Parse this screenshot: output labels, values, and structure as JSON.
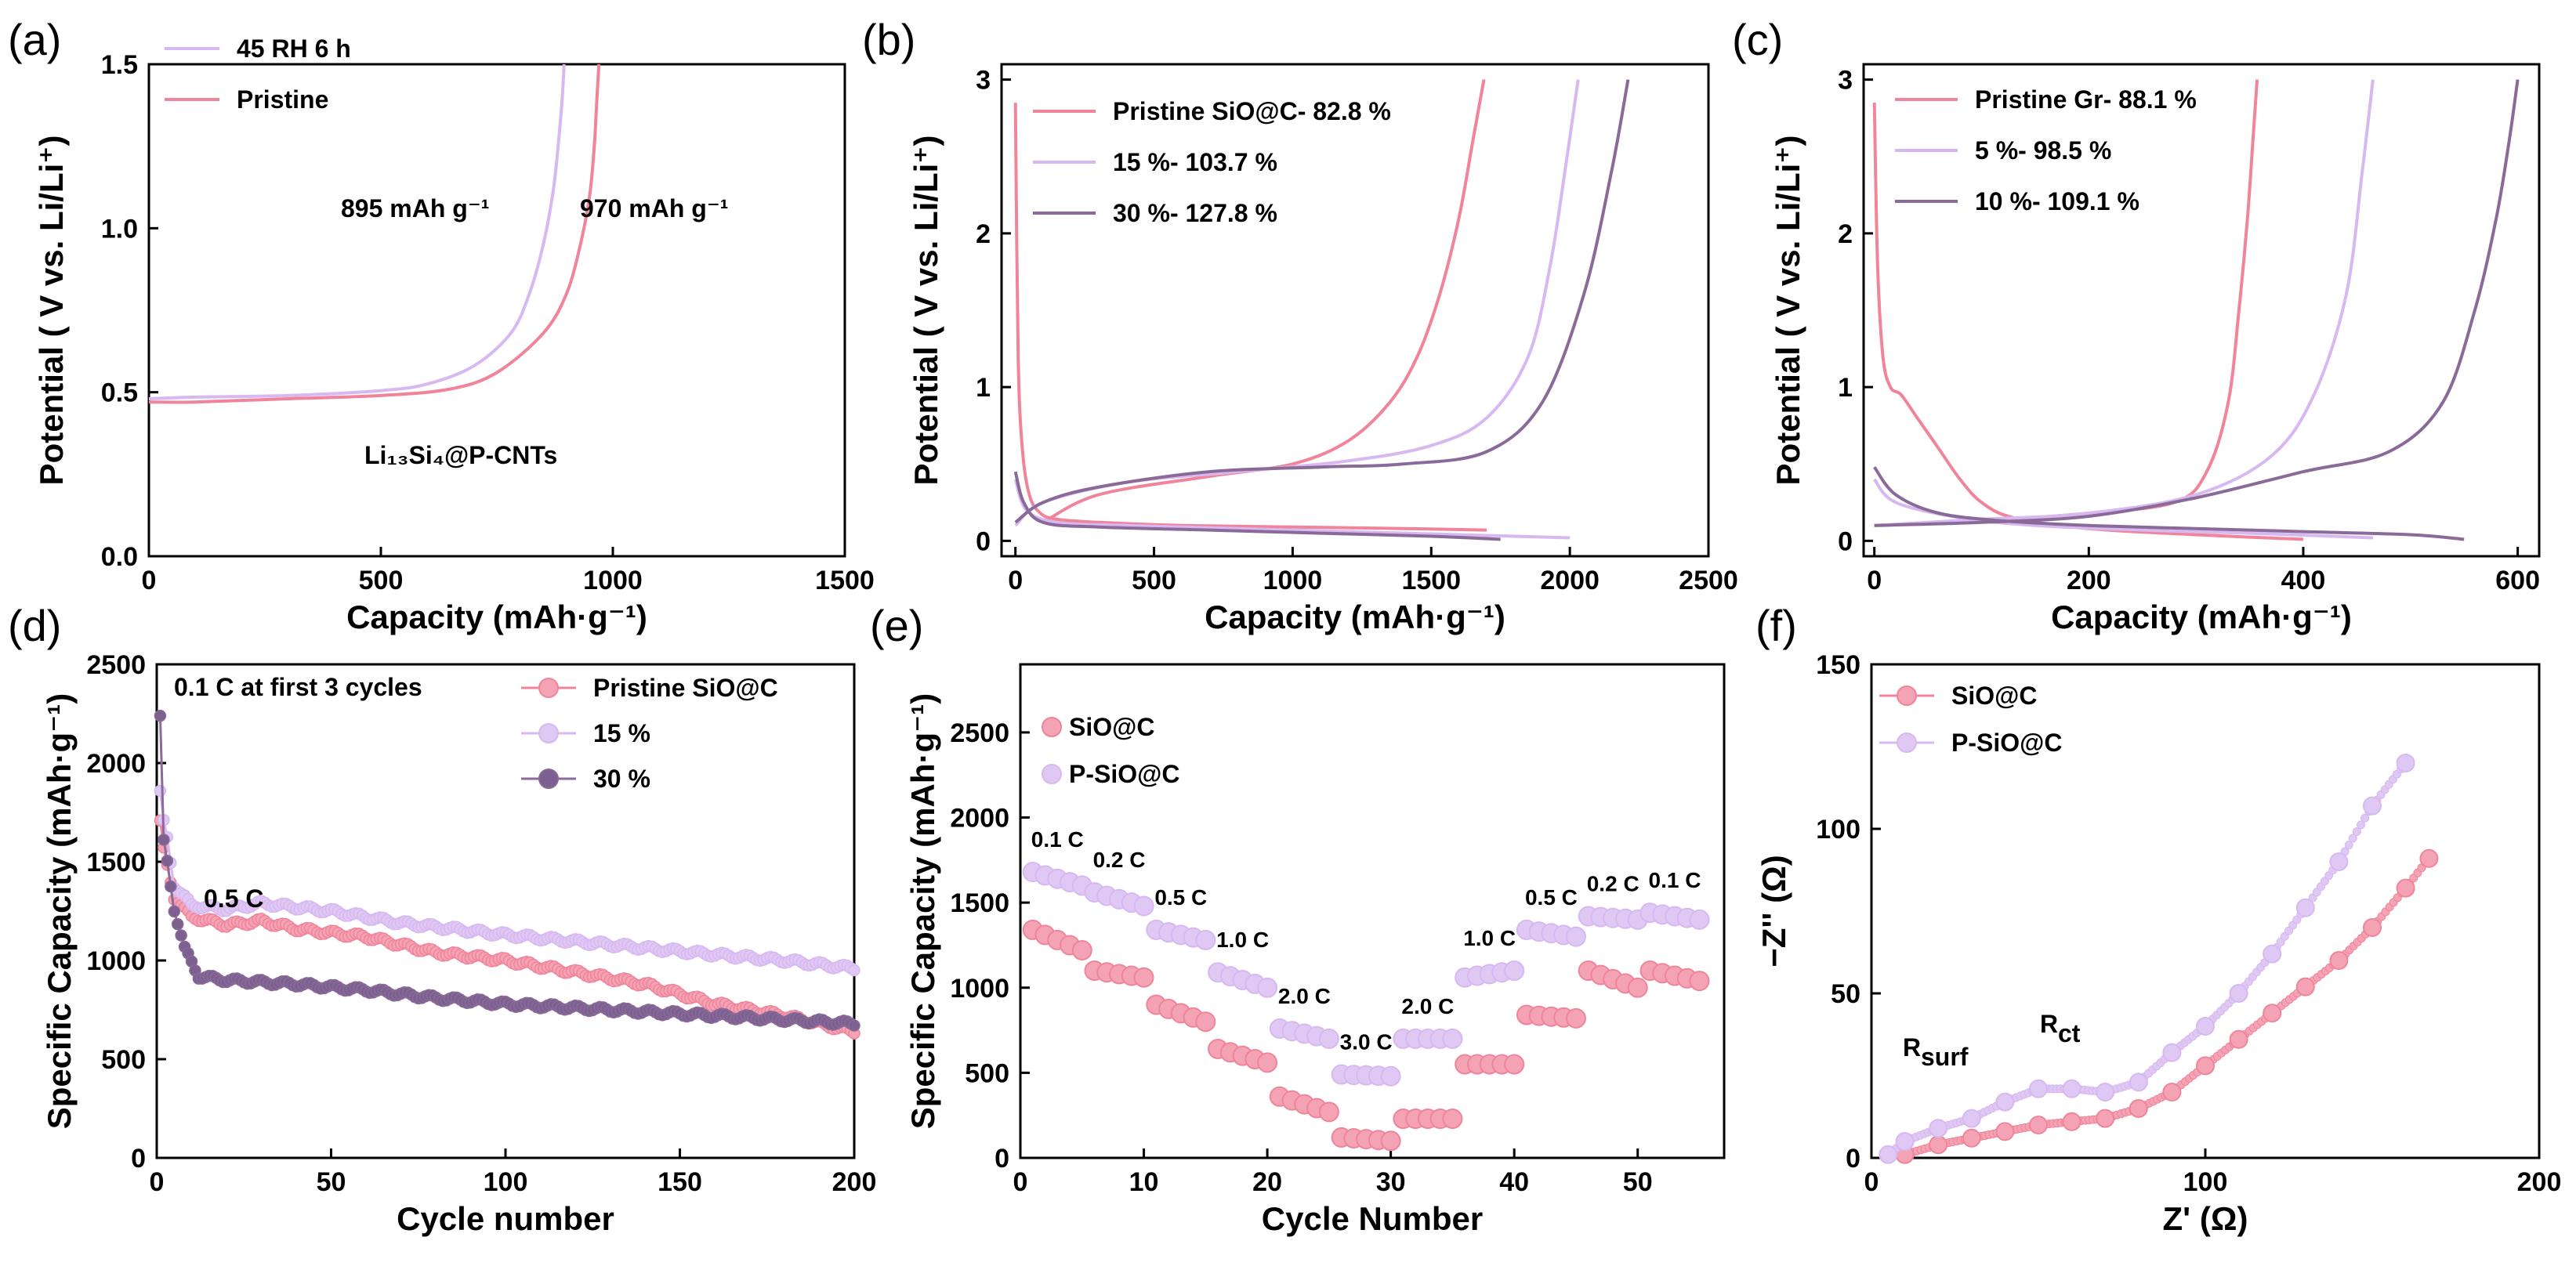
{
  "colors": {
    "pink": "#f0849a",
    "lavender": "#d7b8f0",
    "purple": "#8a6a98",
    "pinkFill": "#f4a3b4",
    "lavFill": "#e0c8f4",
    "purpleFill": "#7c6090"
  },
  "panel_labels": [
    "(a)",
    "(b)",
    "(c)",
    "(d)",
    "(e)",
    "(f)"
  ],
  "chart_data": [
    {
      "id": "a",
      "type": "line",
      "xlabel": "Capacity (mAh·g⁻¹)",
      "ylabel": "Potential ( V vs. Li/Li⁺)",
      "xlim": [
        0,
        1500
      ],
      "ylim": [
        0,
        1.5
      ],
      "xticks": [
        0,
        500,
        1000,
        1500
      ],
      "yticks": [
        0.0,
        0.5,
        1.0,
        1.5
      ],
      "legend": [
        "45 RH 6 h",
        "Pristine"
      ],
      "annotations": [
        "895 mAh g⁻¹",
        "970 mAh g⁻¹",
        "Li₁₃Si₄@P-CNTs"
      ],
      "series": [
        {
          "name": "45 RH 6 h",
          "color": "lavender",
          "x": [
            0,
            100,
            300,
            500,
            600,
            700,
            780,
            820,
            850,
            870,
            880,
            890,
            895
          ],
          "y": [
            0.48,
            0.485,
            0.49,
            0.505,
            0.525,
            0.58,
            0.68,
            0.8,
            0.95,
            1.1,
            1.22,
            1.38,
            1.5
          ]
        },
        {
          "name": "Pristine",
          "color": "pink",
          "x": [
            0,
            100,
            300,
            500,
            650,
            750,
            850,
            900,
            930,
            950,
            960,
            965,
            970
          ],
          "y": [
            0.47,
            0.47,
            0.48,
            0.49,
            0.51,
            0.56,
            0.68,
            0.8,
            0.95,
            1.1,
            1.25,
            1.38,
            1.5
          ]
        }
      ]
    },
    {
      "id": "b",
      "type": "line",
      "xlabel": "Capacity (mAh·g⁻¹)",
      "ylabel": "Potential ( V vs. Li/Li⁺)",
      "xlim": [
        -50,
        2500
      ],
      "ylim": [
        -0.1,
        3.1
      ],
      "xticks": [
        0,
        500,
        1000,
        1500,
        2000,
        2500
      ],
      "yticks": [
        0,
        1,
        2,
        3
      ],
      "legend": [
        "Pristine SiO@C- 82.8 %",
        "15 %- 103.7 %",
        "30 %- 127.8 %"
      ],
      "series": [
        {
          "name": "Pristine SiO@C- 82.8 %",
          "color": "pink",
          "segment": "discharge",
          "x": [
            0,
            10,
            25,
            50,
            90,
            150,
            300,
            600,
            1000,
            1400,
            1700
          ],
          "y": [
            2.85,
            1.2,
            0.6,
            0.3,
            0.18,
            0.14,
            0.12,
            0.1,
            0.09,
            0.08,
            0.07
          ]
        },
        {
          "name": "Pristine SiO@C- 82.8 %",
          "color": "pink",
          "segment": "charge",
          "x": [
            100,
            300,
            700,
            1000,
            1200,
            1350,
            1450,
            1530,
            1600,
            1650,
            1690
          ],
          "y": [
            0.12,
            0.3,
            0.42,
            0.5,
            0.65,
            0.9,
            1.2,
            1.6,
            2.1,
            2.6,
            3.0
          ]
        },
        {
          "name": "15 %- 103.7 %",
          "color": "lavender",
          "segment": "discharge",
          "x": [
            0,
            40,
            150,
            400,
            800,
            1200,
            1600,
            2000
          ],
          "y": [
            0.4,
            0.2,
            0.12,
            0.1,
            0.08,
            0.06,
            0.04,
            0.02
          ]
        },
        {
          "name": "15 %- 103.7 %",
          "color": "lavender",
          "segment": "charge",
          "x": [
            0,
            100,
            400,
            800,
            1200,
            1500,
            1700,
            1850,
            1930,
            1990,
            2030
          ],
          "y": [
            0.1,
            0.25,
            0.38,
            0.45,
            0.52,
            0.62,
            0.8,
            1.2,
            1.8,
            2.5,
            3.0
          ]
        },
        {
          "name": "30 %- 127.8 %",
          "color": "purple",
          "segment": "discharge",
          "x": [
            0,
            30,
            100,
            300,
            700,
            1100,
            1500,
            1750
          ],
          "y": [
            0.45,
            0.25,
            0.12,
            0.09,
            0.07,
            0.05,
            0.03,
            0.01
          ]
        },
        {
          "name": "30 %- 127.8 %",
          "color": "purple",
          "segment": "charge",
          "x": [
            0,
            100,
            300,
            700,
            1100,
            1400,
            1700,
            1900,
            2050,
            2150,
            2210
          ],
          "y": [
            0.12,
            0.25,
            0.35,
            0.45,
            0.48,
            0.5,
            0.58,
            0.9,
            1.6,
            2.4,
            3.0
          ]
        }
      ]
    },
    {
      "id": "c",
      "type": "line",
      "xlabel": "Capacity (mAh·g⁻¹)",
      "ylabel": "Potential ( V vs. Li/Li⁺)",
      "xlim": [
        -10,
        620
      ],
      "ylim": [
        -0.1,
        3.1
      ],
      "xticks": [
        0,
        200,
        400,
        600
      ],
      "yticks": [
        0,
        1,
        2,
        3
      ],
      "legend": [
        "Pristine Gr- 88.1 %",
        "5 %- 98.5 %",
        "10 %- 109.1 %"
      ],
      "series": [
        {
          "name": "Pristine Gr- 88.1 %",
          "color": "pink",
          "segment": "discharge",
          "x": [
            0,
            3,
            8,
            15,
            25,
            40,
            60,
            80,
            100,
            130,
            200,
            300,
            400
          ],
          "y": [
            2.85,
            1.8,
            1.2,
            1.0,
            0.95,
            0.8,
            0.6,
            0.4,
            0.25,
            0.15,
            0.08,
            0.04,
            0.01
          ]
        },
        {
          "name": "Pristine Gr- 88.1 %",
          "color": "pink",
          "segment": "charge",
          "x": [
            0,
            100,
            200,
            280,
            310,
            330,
            340,
            348,
            353,
            357
          ],
          "y": [
            0.1,
            0.13,
            0.18,
            0.25,
            0.45,
            0.9,
            1.5,
            2.1,
            2.6,
            3.0
          ]
        },
        {
          "name": "5 %- 98.5 %",
          "color": "lavender",
          "segment": "discharge",
          "x": [
            0,
            20,
            80,
            150,
            250,
            350,
            465
          ],
          "y": [
            0.4,
            0.25,
            0.15,
            0.1,
            0.07,
            0.05,
            0.02
          ]
        },
        {
          "name": "5 %- 98.5 %",
          "color": "lavender",
          "segment": "charge",
          "x": [
            0,
            100,
            200,
            300,
            370,
            410,
            440,
            455,
            465
          ],
          "y": [
            0.1,
            0.14,
            0.18,
            0.3,
            0.55,
            0.95,
            1.6,
            2.4,
            3.0
          ]
        },
        {
          "name": "10 %- 109.1 %",
          "color": "purple",
          "segment": "discharge",
          "x": [
            0,
            20,
            60,
            120,
            200,
            300,
            400,
            500,
            550
          ],
          "y": [
            0.48,
            0.3,
            0.18,
            0.13,
            0.1,
            0.08,
            0.06,
            0.04,
            0.01
          ]
        },
        {
          "name": "10 %- 109.1 %",
          "color": "purple",
          "segment": "charge",
          "x": [
            0,
            100,
            200,
            300,
            400,
            480,
            530,
            560,
            580,
            592,
            600
          ],
          "y": [
            0.1,
            0.12,
            0.16,
            0.28,
            0.45,
            0.58,
            0.9,
            1.5,
            2.1,
            2.6,
            3.0
          ]
        }
      ]
    },
    {
      "id": "d",
      "type": "scatter",
      "xlabel": "Cycle number",
      "ylabel": "Specific Capacity (mAh·g⁻¹)",
      "xlim": [
        0,
        200
      ],
      "ylim": [
        0,
        2500
      ],
      "xticks": [
        0,
        50,
        100,
        150,
        200
      ],
      "yticks": [
        0,
        500,
        1000,
        1500,
        2000,
        2500
      ],
      "legend": [
        "Pristine SiO@C",
        "15 %",
        "30 %"
      ],
      "annotations": [
        "0.1 C at first 3 cycles",
        "0.5 C"
      ],
      "series": [
        {
          "name": "Pristine SiO@C",
          "color": "pink",
          "anchors": [
            [
              1,
              1700
            ],
            [
              2,
              1560
            ],
            [
              3,
              1480
            ],
            [
              5,
              1320
            ],
            [
              10,
              1220
            ],
            [
              20,
              1180
            ],
            [
              30,
              1200
            ],
            [
              40,
              1160
            ],
            [
              60,
              1120
            ],
            [
              80,
              1040
            ],
            [
              100,
              1000
            ],
            [
              120,
              940
            ],
            [
              140,
              880
            ],
            [
              160,
              780
            ],
            [
              180,
              720
            ],
            [
              200,
              640
            ]
          ]
        },
        {
          "name": "15 %",
          "color": "lavender",
          "anchors": [
            [
              1,
              1850
            ],
            [
              2,
              1700
            ],
            [
              3,
              1620
            ],
            [
              5,
              1380
            ],
            [
              10,
              1280
            ],
            [
              20,
              1260
            ],
            [
              30,
              1290
            ],
            [
              50,
              1250
            ],
            [
              70,
              1190
            ],
            [
              100,
              1130
            ],
            [
              130,
              1080
            ],
            [
              160,
              1030
            ],
            [
              180,
              1000
            ],
            [
              200,
              960
            ]
          ]
        },
        {
          "name": "30 %",
          "color": "purple",
          "anchors": [
            [
              1,
              2230
            ],
            [
              2,
              1600
            ],
            [
              3,
              1500
            ],
            [
              5,
              1260
            ],
            [
              8,
              1060
            ],
            [
              12,
              920
            ],
            [
              20,
              900
            ],
            [
              40,
              880
            ],
            [
              60,
              850
            ],
            [
              80,
              810
            ],
            [
              100,
              780
            ],
            [
              130,
              750
            ],
            [
              160,
              720
            ],
            [
              200,
              680
            ]
          ]
        }
      ]
    },
    {
      "id": "e",
      "type": "scatter",
      "xlabel": "Cycle Number",
      "ylabel": "Specific Capacity (mAh·g⁻¹)",
      "xlim": [
        0,
        57
      ],
      "ylim": [
        0,
        2900
      ],
      "xticks": [
        0,
        10,
        20,
        30,
        40,
        50
      ],
      "yticks": [
        0,
        500,
        1000,
        1500,
        2000,
        2500
      ],
      "legend": [
        "SiO@C",
        "P-SiO@C"
      ],
      "rate_labels": [
        "0.1 C",
        "0.2 C",
        "0.5 C",
        "1.0 C",
        "2.0 C",
        "3.0 C",
        "2.0 C",
        "1.0 C",
        "0.5 C",
        "0.2 C",
        "0.1 C"
      ],
      "series": [
        {
          "name": "SiO@C",
          "color": "pink",
          "steps": [
            [
              1340,
              1220
            ],
            [
              1100,
              1060
            ],
            [
              900,
              800
            ],
            [
              640,
              560
            ],
            [
              360,
              270
            ],
            [
              120,
              100
            ],
            [
              230,
              230
            ],
            [
              550,
              550
            ],
            [
              840,
              820
            ],
            [
              1100,
              1000
            ],
            [
              1100,
              1040
            ]
          ]
        },
        {
          "name": "P-SiO@C",
          "color": "lavender",
          "steps": [
            [
              1680,
              1600
            ],
            [
              1560,
              1480
            ],
            [
              1340,
              1280
            ],
            [
              1090,
              1000
            ],
            [
              760,
              700
            ],
            [
              490,
              480
            ],
            [
              700,
              700
            ],
            [
              1060,
              1100
            ],
            [
              1340,
              1300
            ],
            [
              1420,
              1400
            ],
            [
              1440,
              1400
            ]
          ]
        }
      ]
    },
    {
      "id": "f",
      "type": "scatter",
      "xlabel": "Z' (Ω)",
      "ylabel": "−Z'' (Ω)",
      "xlim": [
        0,
        200
      ],
      "ylim": [
        0,
        150
      ],
      "xticks": [
        0,
        100,
        200
      ],
      "yticks": [
        0,
        50,
        100,
        150
      ],
      "legend": [
        "SiO@C",
        "P-SiO@C"
      ],
      "annotations": [
        "R",
        "surf",
        "R",
        "ct"
      ],
      "series": [
        {
          "name": "SiO@C",
          "color": "pink",
          "x": [
            10,
            20,
            30,
            40,
            50,
            60,
            70,
            80,
            90,
            100,
            110,
            120,
            130,
            140,
            150,
            160,
            167
          ],
          "y": [
            1,
            4,
            6,
            8,
            10,
            11,
            12,
            15,
            20,
            28,
            36,
            44,
            52,
            60,
            70,
            82,
            91
          ]
        },
        {
          "name": "P-SiO@C",
          "color": "lavender",
          "x": [
            5,
            10,
            20,
            30,
            40,
            50,
            60,
            70,
            80,
            90,
            100,
            110,
            120,
            130,
            140,
            150,
            160
          ],
          "y": [
            1,
            5,
            9,
            12,
            17,
            21,
            21,
            20,
            23,
            32,
            40,
            50,
            62,
            76,
            90,
            107,
            120
          ]
        }
      ]
    }
  ]
}
